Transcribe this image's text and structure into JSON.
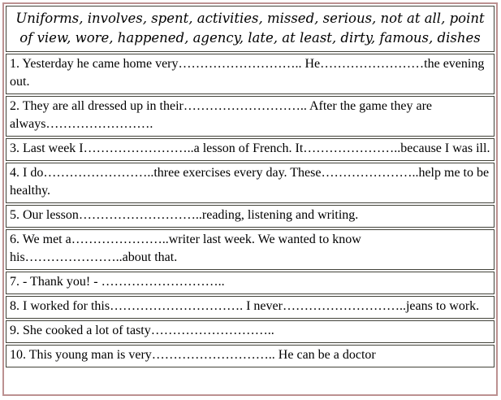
{
  "word_bank": {
    "text": "Uniforms, involves, spent, activities, missed, serious, not at all, point of view, wore, happened, agency, late, at least, dirty, famous, dishes"
  },
  "exercise": {
    "items": [
      "1. Yesterday he came home very……………………….. He……………………the evening out.",
      "2. They are all dressed up in their……………………….. After the game they are always…………………….",
      "3. Last week I……………………..a lesson of French. It…………………..because I was ill.",
      "4. I do……………………..three exercises every day. These…………………..help me to be healthy.",
      "5. Our lesson………………………..reading, listening and writing.",
      "6. We met a…………………..writer last week. We wanted to know his…………………..about that.",
      "7. - Thank you! - ………………………..",
      "8. I worked for this…………………………. I never………………………..jeans to work.",
      "9. She cooked a lot of tasty………………………..",
      "10. This young man is very……………………….. He can be a doctor"
    ]
  },
  "colors": {
    "outer_border": "#bc9191",
    "cell_border": "#43433a",
    "text": "#000000",
    "background": "#ffffff"
  }
}
